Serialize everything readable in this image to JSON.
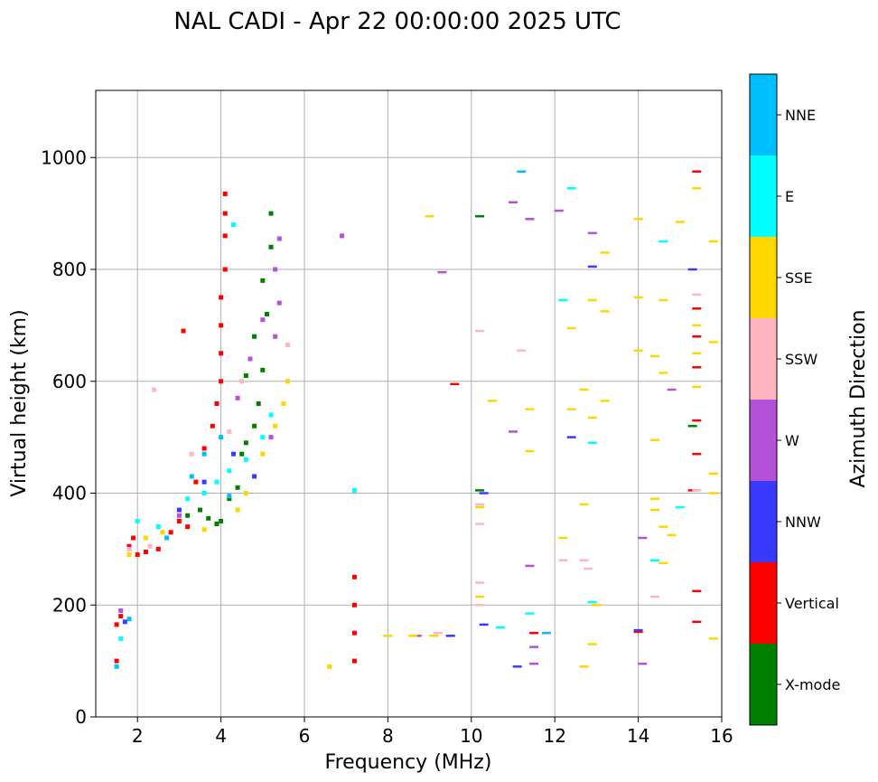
{
  "chart_data": {
    "type": "scatter",
    "title": "NAL CADI - Apr 22 00:00:00 2025 UTC",
    "xlabel": "Frequency (MHz)",
    "ylabel": "Virtual height (km)",
    "xlim": [
      1,
      16
    ],
    "ylim": [
      0,
      1120
    ],
    "xticks": [
      2,
      4,
      6,
      8,
      10,
      12,
      14,
      16
    ],
    "yticks": [
      0,
      200,
      400,
      600,
      800,
      1000
    ],
    "grid": true,
    "colorbar": {
      "title": "Azimuth Direction",
      "categories": [
        {
          "name": "X-mode",
          "color": "#008000"
        },
        {
          "name": "Vertical",
          "color": "#ff0000"
        },
        {
          "name": "NNW",
          "color": "#3a3aff"
        },
        {
          "name": "W",
          "color": "#b452d8"
        },
        {
          "name": "SSW",
          "color": "#ffb6c1"
        },
        {
          "name": "SSE",
          "color": "#ffd700"
        },
        {
          "name": "E",
          "color": "#00ffff"
        },
        {
          "name": "NNE",
          "color": "#00bfff"
        }
      ]
    },
    "series": [
      {
        "name": "X-mode",
        "points": [
          [
            3.5,
            370
          ],
          [
            3.7,
            355
          ],
          [
            3.9,
            345
          ],
          [
            4.0,
            350
          ],
          [
            4.2,
            390
          ],
          [
            4.4,
            410
          ],
          [
            4.5,
            470
          ],
          [
            4.6,
            490
          ],
          [
            4.8,
            520
          ],
          [
            4.9,
            560
          ],
          [
            5.0,
            620
          ],
          [
            5.1,
            720
          ],
          [
            5.0,
            780
          ],
          [
            5.2,
            840
          ],
          [
            5.2,
            900
          ],
          [
            4.8,
            680
          ],
          [
            4.6,
            610
          ],
          [
            10.2,
            895
          ],
          [
            10.2,
            405
          ],
          [
            15.3,
            520
          ],
          [
            3.2,
            360
          ]
        ]
      },
      {
        "name": "Vertical",
        "points": [
          [
            1.5,
            165
          ],
          [
            1.6,
            180
          ],
          [
            1.5,
            100
          ],
          [
            1.8,
            305
          ],
          [
            1.9,
            320
          ],
          [
            2.0,
            290
          ],
          [
            2.2,
            295
          ],
          [
            2.5,
            300
          ],
          [
            2.8,
            330
          ],
          [
            3.0,
            350
          ],
          [
            3.2,
            340
          ],
          [
            3.4,
            420
          ],
          [
            3.6,
            480
          ],
          [
            3.8,
            520
          ],
          [
            3.9,
            560
          ],
          [
            4.0,
            600
          ],
          [
            4.0,
            650
          ],
          [
            4.0,
            700
          ],
          [
            4.0,
            750
          ],
          [
            4.1,
            800
          ],
          [
            4.1,
            860
          ],
          [
            4.1,
            900
          ],
          [
            4.1,
            935
          ],
          [
            3.1,
            690
          ],
          [
            7.2,
            250
          ],
          [
            7.2,
            200
          ],
          [
            7.2,
            150
          ],
          [
            7.2,
            100
          ],
          [
            15.4,
            975
          ],
          [
            15.4,
            730
          ],
          [
            15.4,
            680
          ],
          [
            15.4,
            625
          ],
          [
            15.4,
            530
          ],
          [
            15.4,
            470
          ],
          [
            15.3,
            405
          ],
          [
            15.4,
            225
          ],
          [
            15.4,
            170
          ],
          [
            14.0,
            152
          ],
          [
            9.6,
            595
          ],
          [
            11.5,
            150
          ]
        ]
      },
      {
        "name": "NNW",
        "points": [
          [
            1.7,
            170
          ],
          [
            3.0,
            370
          ],
          [
            3.6,
            420
          ],
          [
            4.3,
            470
          ],
          [
            4.8,
            430
          ],
          [
            12.4,
            500
          ],
          [
            12.9,
            805
          ],
          [
            9.5,
            145
          ],
          [
            10.3,
            400
          ],
          [
            11.1,
            90
          ],
          [
            10.3,
            165
          ],
          [
            15.3,
            800
          ],
          [
            14.0,
            155
          ]
        ]
      },
      {
        "name": "W",
        "points": [
          [
            1.6,
            190
          ],
          [
            3.0,
            360
          ],
          [
            4.4,
            570
          ],
          [
            4.7,
            640
          ],
          [
            5.0,
            710
          ],
          [
            5.3,
            680
          ],
          [
            5.4,
            740
          ],
          [
            5.3,
            800
          ],
          [
            5.4,
            855
          ],
          [
            5.2,
            500
          ],
          [
            6.9,
            860
          ],
          [
            9.3,
            795
          ],
          [
            11.0,
            920
          ],
          [
            11.4,
            890
          ],
          [
            12.1,
            905
          ],
          [
            12.9,
            865
          ],
          [
            14.8,
            585
          ],
          [
            14.1,
            320
          ],
          [
            14.1,
            95
          ],
          [
            11.5,
            95
          ],
          [
            11.5,
            125
          ],
          [
            11.0,
            510
          ],
          [
            8.7,
            145
          ],
          [
            11.4,
            270
          ]
        ]
      },
      {
        "name": "SSW",
        "points": [
          [
            1.8,
            300
          ],
          [
            2.3,
            305
          ],
          [
            3.3,
            470
          ],
          [
            4.2,
            510
          ],
          [
            4.5,
            600
          ],
          [
            5.6,
            665
          ],
          [
            2.4,
            585
          ],
          [
            10.2,
            690
          ],
          [
            10.2,
            380
          ],
          [
            10.2,
            345
          ],
          [
            10.2,
            240
          ],
          [
            10.2,
            200
          ],
          [
            11.2,
            655
          ],
          [
            12.7,
            280
          ],
          [
            12.8,
            265
          ],
          [
            15.4,
            755
          ],
          [
            14.4,
            215
          ],
          [
            15.4,
            405
          ],
          [
            9.2,
            150
          ],
          [
            12.2,
            280
          ]
        ]
      },
      {
        "name": "SSE",
        "points": [
          [
            1.8,
            290
          ],
          [
            2.2,
            320
          ],
          [
            2.6,
            330
          ],
          [
            3.6,
            335
          ],
          [
            4.4,
            370
          ],
          [
            4.6,
            400
          ],
          [
            5.0,
            470
          ],
          [
            5.3,
            520
          ],
          [
            5.5,
            560
          ],
          [
            5.6,
            600
          ],
          [
            6.6,
            90
          ],
          [
            8.0,
            145
          ],
          [
            8.6,
            145
          ],
          [
            9.1,
            145
          ],
          [
            9.0,
            895
          ],
          [
            10.5,
            565
          ],
          [
            10.2,
            375
          ],
          [
            10.2,
            215
          ],
          [
            11.4,
            550
          ],
          [
            11.4,
            475
          ],
          [
            12.2,
            320
          ],
          [
            12.4,
            695
          ],
          [
            12.4,
            550
          ],
          [
            12.7,
            585
          ],
          [
            12.9,
            745
          ],
          [
            12.9,
            535
          ],
          [
            12.7,
            380
          ],
          [
            13.0,
            200
          ],
          [
            12.9,
            130
          ],
          [
            12.7,
            90
          ],
          [
            13.2,
            830
          ],
          [
            13.2,
            725
          ],
          [
            13.2,
            565
          ],
          [
            14.0,
            890
          ],
          [
            14.0,
            750
          ],
          [
            14.0,
            655
          ],
          [
            14.4,
            645
          ],
          [
            14.6,
            745
          ],
          [
            14.6,
            615
          ],
          [
            14.4,
            495
          ],
          [
            14.4,
            390
          ],
          [
            14.4,
            370
          ],
          [
            14.6,
            340
          ],
          [
            14.6,
            275
          ],
          [
            14.8,
            325
          ],
          [
            15.0,
            885
          ],
          [
            15.4,
            945
          ],
          [
            15.4,
            700
          ],
          [
            15.4,
            650
          ],
          [
            15.4,
            590
          ],
          [
            15.8,
            670
          ],
          [
            15.8,
            435
          ],
          [
            15.8,
            400
          ],
          [
            15.8,
            140
          ],
          [
            15.8,
            850
          ]
        ]
      },
      {
        "name": "E",
        "points": [
          [
            1.6,
            140
          ],
          [
            2.0,
            350
          ],
          [
            2.5,
            340
          ],
          [
            3.2,
            390
          ],
          [
            3.6,
            400
          ],
          [
            3.9,
            420
          ],
          [
            4.2,
            440
          ],
          [
            4.6,
            460
          ],
          [
            5.0,
            500
          ],
          [
            5.2,
            540
          ],
          [
            4.3,
            880
          ],
          [
            7.2,
            405
          ],
          [
            10.7,
            160
          ],
          [
            11.4,
            185
          ],
          [
            12.2,
            745
          ],
          [
            12.4,
            945
          ],
          [
            12.9,
            205
          ],
          [
            12.9,
            490
          ],
          [
            14.4,
            280
          ],
          [
            14.6,
            850
          ],
          [
            15.0,
            375
          ]
        ]
      },
      {
        "name": "NNE",
        "points": [
          [
            1.5,
            90
          ],
          [
            1.8,
            175
          ],
          [
            2.7,
            320
          ],
          [
            3.3,
            430
          ],
          [
            3.6,
            470
          ],
          [
            4.0,
            500
          ],
          [
            4.2,
            395
          ],
          [
            11.2,
            975
          ],
          [
            11.8,
            150
          ]
        ]
      }
    ]
  }
}
